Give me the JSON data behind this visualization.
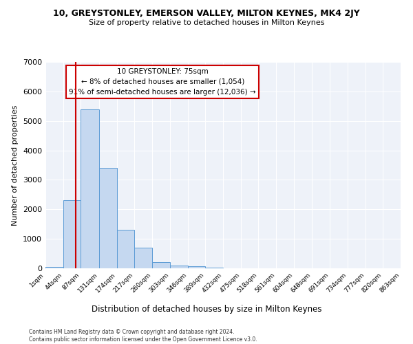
{
  "title_line1": "10, GREYSTONLEY, EMERSON VALLEY, MILTON KEYNES, MK4 2JY",
  "title_line2": "Size of property relative to detached houses in Milton Keynes",
  "xlabel": "Distribution of detached houses by size in Milton Keynes",
  "ylabel": "Number of detached properties",
  "bar_color": "#c5d8f0",
  "bar_edge_color": "#5b9bd5",
  "background_color": "#eef2f9",
  "property_line_x": 75,
  "property_line_color": "#cc0000",
  "bin_edges": [
    1,
    44,
    87,
    131,
    174,
    217,
    260,
    303,
    346,
    389,
    432,
    475,
    518,
    561,
    604,
    648,
    691,
    734,
    777,
    820,
    863
  ],
  "bar_heights": [
    50,
    2300,
    5400,
    3400,
    1300,
    700,
    200,
    100,
    80,
    30,
    10,
    5,
    3,
    2,
    1,
    1,
    1,
    0,
    0,
    0
  ],
  "annotation_text": "10 GREYSTONLEY: 75sqm\n← 8% of detached houses are smaller (1,054)\n91% of semi-detached houses are larger (12,036) →",
  "annotation_box_color": "#ffffff",
  "annotation_box_edge": "#cc0000",
  "ylim": [
    0,
    7000
  ],
  "yticks": [
    0,
    1000,
    2000,
    3000,
    4000,
    5000,
    6000,
    7000
  ],
  "footer_line1": "Contains HM Land Registry data © Crown copyright and database right 2024.",
  "footer_line2": "Contains public sector information licensed under the Open Government Licence v3.0."
}
